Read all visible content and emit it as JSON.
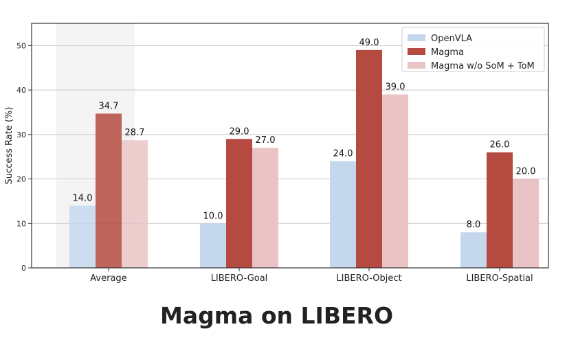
{
  "caption": "Magma on LIBERO",
  "chart_data": {
    "type": "bar",
    "title": "",
    "xlabel": "",
    "ylabel": "Success Rate (%)",
    "ylim": [
      0,
      55
    ],
    "yticks": [
      0,
      10,
      20,
      30,
      40,
      50
    ],
    "grid": "horizontal",
    "legend_position": "top-right",
    "categories": [
      "Average",
      "LIBERO-Goal",
      "LIBERO-Object",
      "LIBERO-Spatial"
    ],
    "highlight_category": "Average",
    "series": [
      {
        "name": "OpenVLA",
        "color": "#c5d7ec",
        "values": [
          14.0,
          10.0,
          24.0,
          8.0
        ],
        "labels": [
          "14.0",
          "10.0",
          "24.0",
          "8.0"
        ]
      },
      {
        "name": "Magma",
        "color": "#b54a40",
        "values": [
          34.7,
          29.0,
          49.0,
          26.0
        ],
        "labels": [
          "34.7",
          "29.0",
          "49.0",
          "26.0"
        ]
      },
      {
        "name": "Magma w/o SoM + ToM",
        "color": "#eac4c5",
        "values": [
          28.7,
          27.0,
          39.0,
          20.0
        ],
        "labels": [
          "28.7",
          "27.0",
          "39.0",
          "20.0"
        ]
      }
    ]
  }
}
